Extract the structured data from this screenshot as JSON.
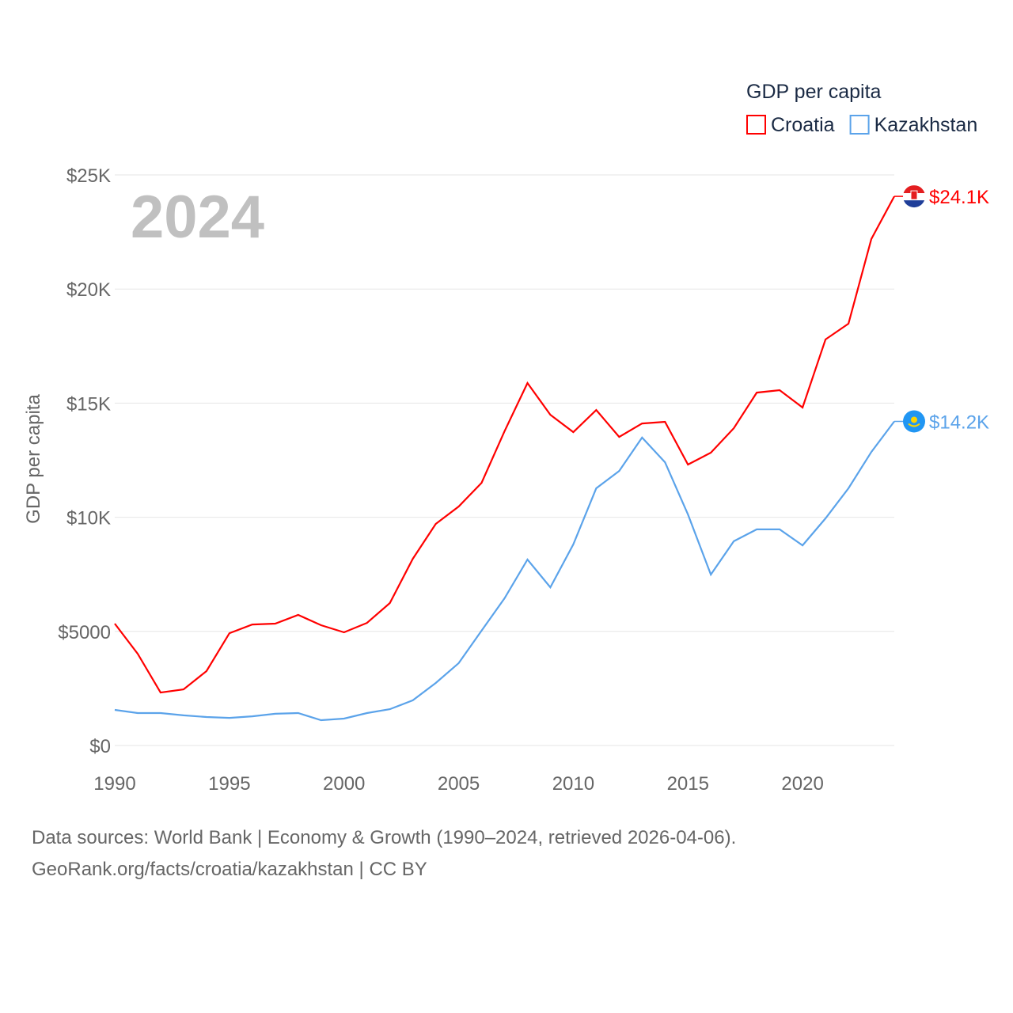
{
  "chart_data": {
    "type": "line",
    "title": "GDP per capita",
    "year_label": "2024",
    "xlabel": "",
    "ylabel": "GDP per capita",
    "xlim": [
      1990,
      2024
    ],
    "ylim": [
      0,
      25000
    ],
    "x_ticks": [
      "1990",
      "1995",
      "2000",
      "2005",
      "2010",
      "2015",
      "2020"
    ],
    "x_tick_values": [
      1990,
      1995,
      2000,
      2005,
      2010,
      2015,
      2020
    ],
    "y_ticks": [
      "$0",
      "$5000",
      "$10K",
      "$15K",
      "$20K",
      "$25K"
    ],
    "y_tick_values": [
      0,
      5000,
      10000,
      15000,
      20000,
      25000
    ],
    "grid": true,
    "legend_title": "GDP per capita",
    "legend_placement": "top-right",
    "x": [
      1990,
      1991,
      1992,
      1993,
      1994,
      1995,
      1996,
      1997,
      1998,
      1999,
      2000,
      2001,
      2002,
      2003,
      2004,
      2005,
      2006,
      2007,
      2008,
      2009,
      2010,
      2011,
      2012,
      2013,
      2014,
      2015,
      2016,
      2017,
      2018,
      2019,
      2020,
      2021,
      2022,
      2023,
      2024
    ],
    "series": [
      {
        "name": "Croatia",
        "color": "#ff0000",
        "end_label": "$24.1K",
        "values": [
          5340,
          4020,
          2320,
          2460,
          3260,
          4920,
          5300,
          5340,
          5720,
          5270,
          4960,
          5370,
          6240,
          8180,
          9710,
          10470,
          11510,
          13770,
          15880,
          14490,
          13730,
          14700,
          13520,
          14110,
          14180,
          12310,
          12830,
          13900,
          15460,
          15570,
          14810,
          17790,
          18480,
          22190,
          24060
        ]
      },
      {
        "name": "Kazakhstan",
        "color": "#5ba3ea",
        "end_label": "$14.2K",
        "values": [
          1560,
          1420,
          1420,
          1320,
          1250,
          1210,
          1280,
          1390,
          1420,
          1110,
          1180,
          1420,
          1590,
          1980,
          2740,
          3610,
          5030,
          6450,
          8150,
          6930,
          8810,
          11270,
          12030,
          13490,
          12410,
          10120,
          7490,
          8950,
          9470,
          9470,
          8770,
          9950,
          11270,
          12860,
          14200
        ]
      }
    ]
  },
  "footer": {
    "line1": "Data sources: World Bank | Economy & Growth (1990–2024, retrieved 2026-04-06).",
    "line2": "GeoRank.org/facts/croatia/kazakhstan | CC BY"
  }
}
